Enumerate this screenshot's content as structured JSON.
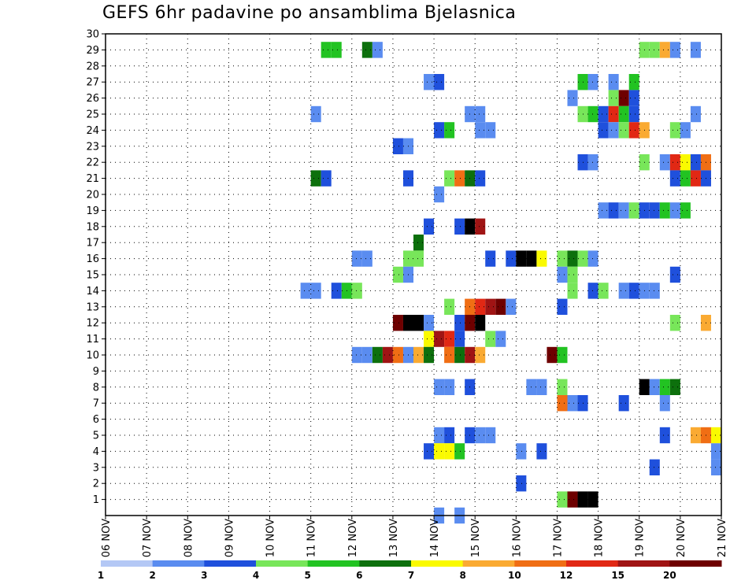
{
  "chart_data": {
    "type": "heatmap",
    "title": "GEFS 6hr padavine po ansamblima Bjelasnica",
    "xlabel": "",
    "ylabel": "",
    "x_ticks": [
      "06 NOV",
      "07 NOV",
      "08 NOV",
      "09 NOV",
      "10 NOV",
      "11 NOV",
      "12 NOV",
      "13 NOV",
      "14 NOV",
      "15 NOV",
      "16 NOV",
      "17 NOV",
      "18 NOV",
      "19 NOV",
      "20 NOV",
      "21 NOV"
    ],
    "y_ticks": [
      "1",
      "2",
      "3",
      "4",
      "5",
      "6",
      "7",
      "8",
      "9",
      "10",
      "11",
      "12",
      "13",
      "14",
      "15",
      "16",
      "17",
      "18",
      "19",
      "20",
      "21",
      "22",
      "23",
      "24",
      "25",
      "26",
      "27",
      "28",
      "29",
      "30"
    ],
    "x_range_days": [
      0,
      15
    ],
    "y_range": [
      0,
      30
    ],
    "grid": true,
    "legend_placement": "bottom",
    "color_scale": {
      "labels": [
        "1",
        "2",
        "3",
        "4",
        "5",
        "6",
        "7",
        "8",
        "10",
        "12",
        "15",
        "20"
      ],
      "colors": [
        "#b4c8f5",
        "#5a8cf0",
        "#1f50dc",
        "#78e65a",
        "#22c322",
        "#0d700d",
        "#fafa00",
        "#faaa32",
        "#f06e14",
        "#e12814",
        "#a01414",
        "#6e0000"
      ]
    },
    "cells": [
      [
        5.25,
        29,
        4
      ],
      [
        5.5,
        29,
        4
      ],
      [
        6.25,
        29,
        5
      ],
      [
        6.5,
        29,
        1
      ],
      [
        13.0,
        29,
        3
      ],
      [
        13.25,
        29,
        3
      ],
      [
        13.5,
        29,
        7
      ],
      [
        13.75,
        29,
        1
      ],
      [
        14.25,
        29,
        1
      ],
      [
        7.75,
        27,
        1
      ],
      [
        8.0,
        27,
        2
      ],
      [
        11.5,
        27,
        4
      ],
      [
        11.75,
        27,
        1
      ],
      [
        12.25,
        27,
        1
      ],
      [
        12.75,
        27,
        4
      ],
      [
        11.25,
        26,
        1
      ],
      [
        12.25,
        26,
        3
      ],
      [
        12.5,
        26,
        11
      ],
      [
        12.75,
        26,
        2
      ],
      [
        5.0,
        25,
        1
      ],
      [
        8.75,
        25,
        1
      ],
      [
        9.0,
        25,
        1
      ],
      [
        11.5,
        25,
        3
      ],
      [
        11.75,
        25,
        4
      ],
      [
        12.0,
        25,
        2
      ],
      [
        12.25,
        25,
        9
      ],
      [
        12.5,
        25,
        4
      ],
      [
        12.75,
        25,
        2
      ],
      [
        14.25,
        25,
        1
      ],
      [
        8.0,
        24,
        2
      ],
      [
        8.25,
        24,
        4
      ],
      [
        9.0,
        24,
        1
      ],
      [
        9.25,
        24,
        1
      ],
      [
        12.0,
        24,
        2
      ],
      [
        12.25,
        24,
        1
      ],
      [
        12.5,
        24,
        3
      ],
      [
        12.75,
        24,
        9
      ],
      [
        13.0,
        24,
        7
      ],
      [
        13.75,
        24,
        3
      ],
      [
        14.0,
        24,
        1
      ],
      [
        7.0,
        23,
        2
      ],
      [
        7.25,
        23,
        1
      ],
      [
        11.5,
        22,
        2
      ],
      [
        11.75,
        22,
        1
      ],
      [
        13.0,
        22,
        3
      ],
      [
        13.5,
        22,
        1
      ],
      [
        13.75,
        22,
        9
      ],
      [
        14.0,
        22,
        6
      ],
      [
        14.25,
        22,
        2
      ],
      [
        14.5,
        22,
        8
      ],
      [
        5.0,
        21,
        5
      ],
      [
        5.25,
        21,
        2
      ],
      [
        7.25,
        21,
        2
      ],
      [
        8.25,
        21,
        3
      ],
      [
        8.5,
        21,
        8
      ],
      [
        8.75,
        21,
        5
      ],
      [
        9.0,
        21,
        2
      ],
      [
        13.75,
        21,
        2
      ],
      [
        14.0,
        21,
        4
      ],
      [
        14.25,
        21,
        9
      ],
      [
        14.5,
        21,
        2
      ],
      [
        8.0,
        20,
        1
      ],
      [
        12.0,
        19,
        1
      ],
      [
        12.25,
        19,
        2
      ],
      [
        12.5,
        19,
        1
      ],
      [
        12.75,
        19,
        3
      ],
      [
        13.0,
        19,
        2
      ],
      [
        13.25,
        19,
        2
      ],
      [
        13.5,
        19,
        4
      ],
      [
        13.75,
        19,
        1
      ],
      [
        14.0,
        19,
        4
      ],
      [
        7.75,
        18,
        2
      ],
      [
        8.5,
        18,
        2
      ],
      [
        8.75,
        18,
        12
      ],
      [
        9.0,
        18,
        10
      ],
      [
        7.5,
        17,
        5
      ],
      [
        6.0,
        16,
        1
      ],
      [
        6.25,
        16,
        1
      ],
      [
        7.25,
        16,
        3
      ],
      [
        7.5,
        16,
        3
      ],
      [
        9.25,
        16,
        2
      ],
      [
        9.75,
        16,
        2
      ],
      [
        10.0,
        16,
        12
      ],
      [
        10.25,
        16,
        12
      ],
      [
        10.5,
        16,
        6
      ],
      [
        11.0,
        16,
        3
      ],
      [
        11.25,
        16,
        5
      ],
      [
        11.5,
        16,
        3
      ],
      [
        11.75,
        16,
        1
      ],
      [
        7.0,
        15,
        3
      ],
      [
        7.25,
        15,
        1
      ],
      [
        11.25,
        15,
        3
      ],
      [
        11.0,
        15,
        1
      ],
      [
        13.75,
        15,
        2
      ],
      [
        4.75,
        14,
        1
      ],
      [
        5.0,
        14,
        1
      ],
      [
        5.5,
        14,
        2
      ],
      [
        5.75,
        14,
        4
      ],
      [
        6.0,
        14,
        3
      ],
      [
        11.25,
        14,
        3
      ],
      [
        11.75,
        14,
        2
      ],
      [
        12.0,
        14,
        3
      ],
      [
        12.5,
        14,
        1
      ],
      [
        12.75,
        14,
        2
      ],
      [
        13.0,
        14,
        1
      ],
      [
        13.25,
        14,
        1
      ],
      [
        8.25,
        13,
        3
      ],
      [
        8.75,
        13,
        8
      ],
      [
        9.0,
        13,
        9
      ],
      [
        9.25,
        13,
        10
      ],
      [
        9.5,
        13,
        11
      ],
      [
        9.75,
        13,
        1
      ],
      [
        11.0,
        13,
        2
      ],
      [
        7.0,
        12,
        11
      ],
      [
        7.25,
        12,
        12
      ],
      [
        7.5,
        12,
        12
      ],
      [
        7.75,
        12,
        1
      ],
      [
        8.5,
        12,
        2
      ],
      [
        8.75,
        12,
        11
      ],
      [
        9.0,
        12,
        12
      ],
      [
        13.75,
        12,
        3
      ],
      [
        14.5,
        12,
        7
      ],
      [
        7.75,
        11,
        6
      ],
      [
        8.0,
        11,
        10
      ],
      [
        8.25,
        11,
        9
      ],
      [
        8.5,
        11,
        2
      ],
      [
        9.25,
        11,
        3
      ],
      [
        9.5,
        11,
        1
      ],
      [
        6.0,
        10,
        1
      ],
      [
        6.25,
        10,
        1
      ],
      [
        6.5,
        10,
        5
      ],
      [
        6.75,
        10,
        10
      ],
      [
        7.0,
        10,
        8
      ],
      [
        7.25,
        10,
        1
      ],
      [
        7.5,
        10,
        7
      ],
      [
        7.75,
        10,
        5
      ],
      [
        8.25,
        10,
        8
      ],
      [
        8.5,
        10,
        5
      ],
      [
        8.75,
        10,
        10
      ],
      [
        9.0,
        10,
        7
      ],
      [
        10.75,
        10,
        11
      ],
      [
        11.0,
        10,
        4
      ],
      [
        8.0,
        8,
        1
      ],
      [
        8.25,
        8,
        1
      ],
      [
        8.75,
        8,
        2
      ],
      [
        10.25,
        8,
        1
      ],
      [
        10.5,
        8,
        1
      ],
      [
        11.0,
        8,
        3
      ],
      [
        13.0,
        8,
        12
      ],
      [
        13.25,
        8,
        1
      ],
      [
        13.5,
        8,
        4
      ],
      [
        13.75,
        8,
        5
      ],
      [
        11.0,
        7,
        8
      ],
      [
        11.25,
        7,
        1
      ],
      [
        11.5,
        7,
        2
      ],
      [
        12.5,
        7,
        2
      ],
      [
        13.5,
        7,
        1
      ],
      [
        8.0,
        5,
        1
      ],
      [
        8.25,
        5,
        2
      ],
      [
        8.75,
        5,
        2
      ],
      [
        9.0,
        5,
        1
      ],
      [
        9.25,
        5,
        1
      ],
      [
        13.5,
        5,
        2
      ],
      [
        14.25,
        5,
        7
      ],
      [
        14.5,
        5,
        8
      ],
      [
        14.75,
        5,
        6
      ],
      [
        7.75,
        4,
        2
      ],
      [
        8.0,
        4,
        6
      ],
      [
        8.25,
        4,
        6
      ],
      [
        8.5,
        4,
        4
      ],
      [
        10.0,
        4,
        1
      ],
      [
        10.5,
        4,
        2
      ],
      [
        14.75,
        4,
        1
      ],
      [
        13.25,
        3,
        2
      ],
      [
        14.75,
        3,
        1
      ],
      [
        10.0,
        2,
        2
      ],
      [
        11.0,
        1,
        3
      ],
      [
        11.25,
        1,
        11
      ],
      [
        11.5,
        1,
        12
      ],
      [
        11.75,
        1,
        12
      ],
      [
        8.0,
        0,
        1
      ],
      [
        8.5,
        0,
        1
      ]
    ]
  }
}
